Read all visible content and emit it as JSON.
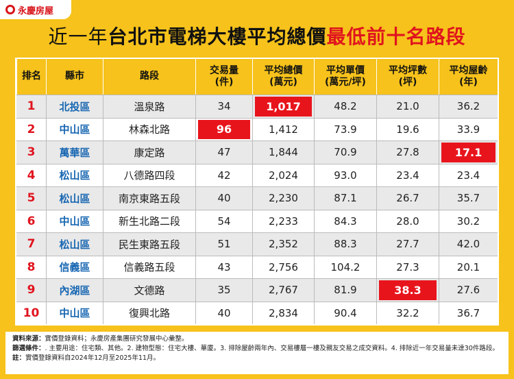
{
  "logo": "永慶房屋",
  "title": {
    "prefix": "近一年",
    "main": "台北市電梯大樓平均總價",
    "highlight": "最低前十名路段"
  },
  "table": {
    "header": [
      "排名",
      "縣市",
      "路段",
      "交易量\n(件)",
      "平均總價\n(萬元)",
      "平均單價\n(萬元/坪)",
      "平均坪數\n(坪)",
      "平均屋齡\n(年)"
    ],
    "rows": [
      [
        "1",
        "北投區",
        "溫泉路",
        "34",
        {
          "text": "1,017",
          "highlight": true
        },
        "48.2",
        "21.0",
        "36.2"
      ],
      [
        "2",
        "中山區",
        "林森北路",
        {
          "text": "96",
          "highlight": true
        },
        "1,412",
        "73.9",
        "19.6",
        "33.9"
      ],
      [
        "3",
        "萬華區",
        "康定路",
        "47",
        "1,844",
        "70.9",
        "27.8",
        {
          "text": "17.1",
          "highlight": true
        }
      ],
      [
        "4",
        "松山區",
        "八德路四段",
        "42",
        "2,024",
        "93.0",
        "23.4",
        "23.4"
      ],
      [
        "5",
        "松山區",
        "南京東路五段",
        "40",
        "2,230",
        "87.1",
        "26.7",
        "35.7"
      ],
      [
        "6",
        "中山區",
        "新生北路二段",
        "54",
        "2,233",
        "84.3",
        "28.0",
        "30.2"
      ],
      [
        "7",
        "松山區",
        "民生東路五段",
        "51",
        "2,352",
        "88.3",
        "27.7",
        "42.0"
      ],
      [
        "8",
        "信義區",
        "信義路五段",
        "43",
        "2,756",
        "104.2",
        "27.3",
        "20.1"
      ],
      [
        "9",
        "內湖區",
        "文德路",
        "35",
        "2,767",
        "81.9",
        {
          "text": "38.3",
          "highlight": true
        },
        "27.6"
      ],
      [
        "10",
        "中山區",
        "復興北路",
        "40",
        "2,834",
        "90.4",
        "32.2",
        "36.7"
      ]
    ]
  },
  "notes": [
    {
      "label": "資料來源：",
      "text": "實價登錄資料；永慶房產集團研究發展中心彙整。"
    },
    {
      "label": "篩選條件：",
      "text": ". 主要用途：住宅類、其他。2. 建物型態：住宅大樓、華廈。3. 排除屋齡兩年內、交易樓層一樓及親友交易之成交資料。4. 排除近一年交易量未達30件路段。"
    },
    {
      "label": "註：",
      "text": "實價登錄資料自2024年12月至2025年11月。"
    }
  ]
}
